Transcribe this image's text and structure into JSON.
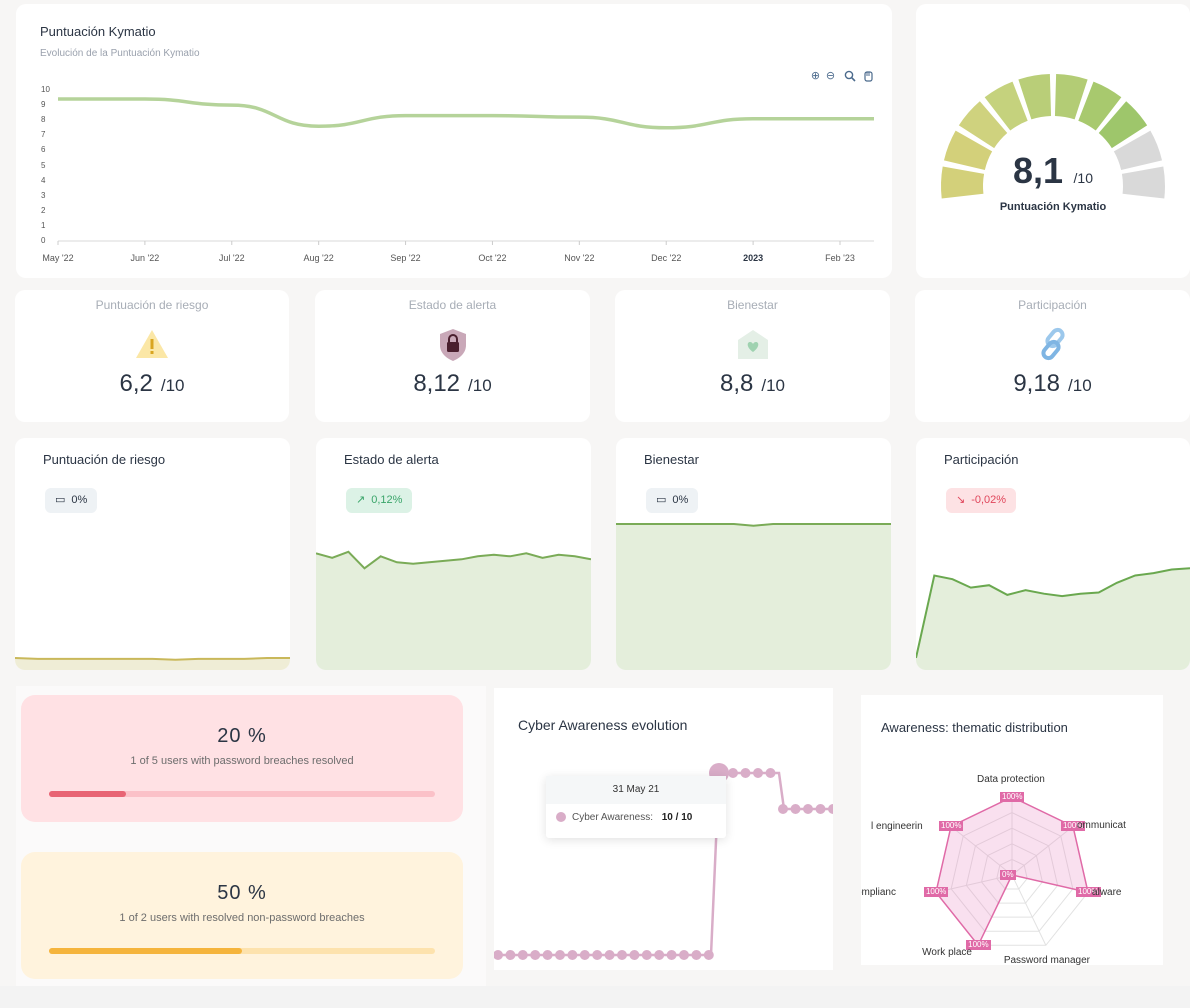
{
  "score_card": {
    "title": "Puntuación Kymatio",
    "subtitle": "Evolución de la Puntuación Kymatio",
    "toolbar": [
      "zoom-in-icon",
      "zoom-out-icon",
      "magnifier-icon",
      "hand-pan-icon"
    ]
  },
  "chart_data": [
    {
      "type": "line",
      "x": [
        "May '22",
        "Jun '22",
        "Jul '22",
        "Aug '22",
        "Sep '22",
        "Oct '22",
        "Nov '22",
        "Dec '22",
        "2023",
        "Feb '23"
      ],
      "values": [
        9.4,
        9.4,
        9.0,
        7.6,
        8.3,
        8.3,
        8.2,
        7.5,
        8.1,
        8.1
      ],
      "yticks": [
        "0",
        "1",
        "2",
        "3",
        "4",
        "5",
        "6",
        "7",
        "8",
        "9",
        "10"
      ],
      "ylim": [
        0,
        10
      ],
      "color": "#b5d39a"
    },
    {
      "type": "line",
      "title": "Cyber Awareness evolution",
      "tooltip": {
        "date": "31 May 21",
        "series": "Cyber Awareness:",
        "value": "10 / 10"
      },
      "color": "#d9adc8"
    },
    {
      "type": "radar",
      "title": "Awareness: thematic distribution",
      "axes": [
        "Data protection",
        "Communications",
        "Malware",
        "Password manager",
        "Work place",
        "Compliance",
        "Social engineering"
      ],
      "axis_labels_shown": [
        "Data protection",
        "ommunicat",
        "alware",
        "Password manager",
        "Work place",
        "omplianc",
        "l engineerin"
      ],
      "values": [
        100,
        100,
        100,
        0,
        100,
        100,
        100
      ],
      "value_labels": [
        "100%",
        "100%",
        "100%",
        "0%",
        "100%",
        "100%",
        "100%"
      ],
      "color": "#e06aa7"
    }
  ],
  "gauge": {
    "value": "8,1",
    "max": "/10",
    "label": "Puntuación Kymatio",
    "segments_filled": 8,
    "segments_total": 10
  },
  "kpis": [
    {
      "label": "Puntuación de riesgo",
      "value": "6,2",
      "max": "/10",
      "icon": "warning-icon"
    },
    {
      "label": "Estado de alerta",
      "value": "8,12",
      "max": "/10",
      "icon": "shield-lock-icon"
    },
    {
      "label": "Bienestar",
      "value": "8,8",
      "max": "/10",
      "icon": "home-heart-icon"
    },
    {
      "label": "Participación",
      "value": "9,18",
      "max": "/10",
      "icon": "link-icon"
    }
  ],
  "trends": [
    {
      "title": "Puntuación de riesgo",
      "badge": "0%",
      "trend": "neutral",
      "color": "#c9b85a",
      "fill": "#efedd6"
    },
    {
      "title": "Estado de alerta",
      "badge": "0,12%",
      "trend": "up",
      "color": "#7aab57",
      "fill": "#e4eedb"
    },
    {
      "title": "Bienestar",
      "badge": "0%",
      "trend": "neutral",
      "color": "#7aab57",
      "fill": "#e4eedb"
    },
    {
      "title": "Participación",
      "badge": "-0,02%",
      "trend": "down",
      "color": "#6aa84f",
      "fill": "#e4eedb"
    }
  ],
  "breaches": [
    {
      "pct": "20 %",
      "desc": "1 of 5 users with password breaches resolved",
      "progress": 0.2,
      "bg": "#ffe1e4",
      "track": "#fbc1c8",
      "fill": "#e86474"
    },
    {
      "pct": "50 %",
      "desc": "1 of 2 users with resolved non-password breaches",
      "progress": 0.5,
      "bg": "#fff3dd",
      "track": "#fde2ad",
      "fill": "#f5b43c"
    }
  ]
}
